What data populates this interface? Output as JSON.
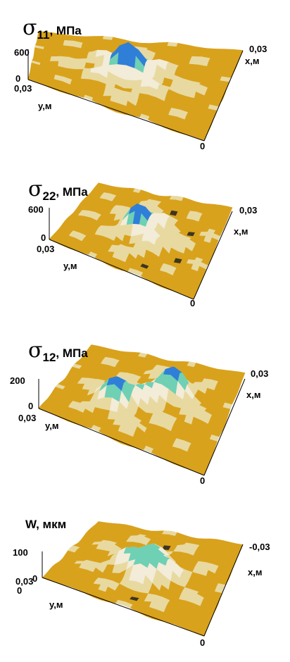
{
  "panels": [
    {
      "symbol": "σ",
      "subscript": "11",
      "unit": ", МПа",
      "z_max": "600",
      "z_min": "0",
      "y_axis_tick": "0,03",
      "y_axis_label": "y,м",
      "x_axis_tick": "0,03",
      "x_axis_label": "x,м",
      "origin_tick": "0"
    },
    {
      "symbol": "σ",
      "subscript": "22",
      "unit": ", МПа",
      "z_max": "600",
      "z_min": "0",
      "y_axis_tick": "0,03",
      "y_axis_label": "y,м",
      "x_axis_tick": "0,03",
      "x_axis_label": "x,м",
      "origin_tick": "0"
    },
    {
      "symbol": "σ",
      "subscript": "12",
      "unit": ", МПа",
      "z_max": "200",
      "z_min": "0",
      "y_axis_tick": "0,03",
      "y_axis_label": "y,м",
      "x_axis_tick": "0,03",
      "x_axis_label": "x,м",
      "origin_tick": "0"
    },
    {
      "symbol": "W",
      "subscript": "",
      "unit": ", мкм",
      "z_max": "100",
      "z_min": "0",
      "y_axis_tick": "0,03",
      "y_axis_label": "y,м",
      "x_axis_tick": "-0,03",
      "x_axis_label": "x,м",
      "origin_tick": "0"
    }
  ],
  "colors": {
    "surface_light": "#f2ecd8",
    "surface_gold": "#d9a21c",
    "surface_dark": "#3c3520",
    "peak_blue": "#2f7fd8",
    "peak_teal": "#6fd0b4"
  }
}
